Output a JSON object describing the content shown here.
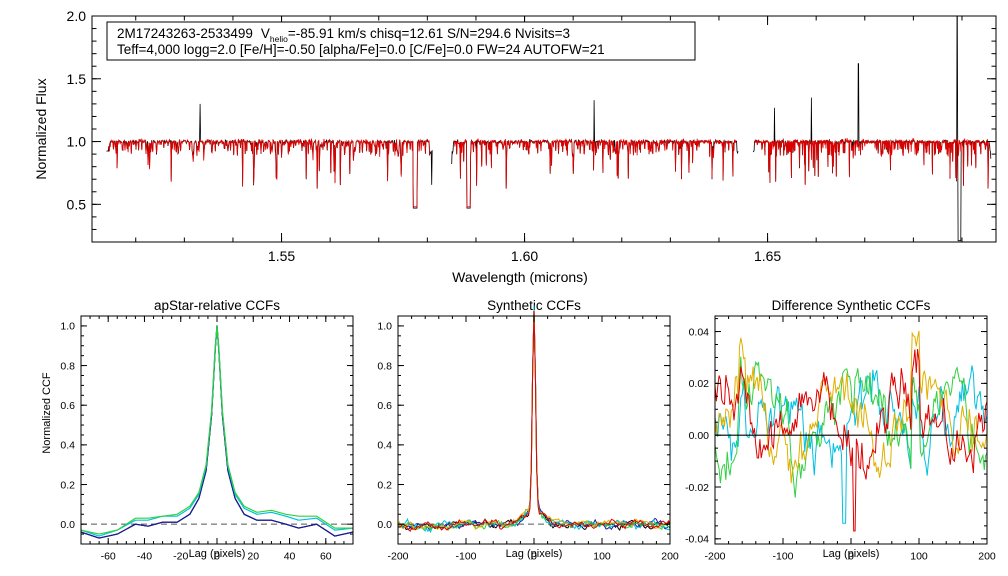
{
  "top": {
    "title_line1": {
      "star": "2M17243263-2533499",
      "v": "V",
      "v_sub": "helio",
      "v_rest": "=-85.91 km/s  chisq=12.61  S/N=294.6  Nvisits=3"
    },
    "title_line2": "Teff=4,000 logg=2.0 [Fe/H]=-0.50 [alpha/Fe]=0.0 [C/Fe]=0.0 FW=24 AUTOFW=21",
    "xlabel": "Wavelength (microns)",
    "ylabel": "Normalized Flux",
    "xlim": [
      1.511,
      1.697
    ],
    "ylim": [
      0.2,
      2.0
    ],
    "xticks": [
      1.55,
      1.6,
      1.65
    ],
    "xtick_labels": [
      "1.55",
      "1.60",
      "1.65"
    ],
    "yticks": [
      0.5,
      1.0,
      1.5,
      2.0
    ],
    "ytick_labels": [
      "0.5",
      "1.0",
      "1.5",
      "2.0"
    ],
    "chips": [
      [
        1.514,
        1.581
      ],
      [
        1.585,
        1.644
      ],
      [
        1.647,
        1.696
      ]
    ],
    "colors": {
      "observed": "#000000",
      "model": "#e00000"
    }
  },
  "chart_data": [
    {
      "type": "line",
      "title": "apStar-relative CCFs",
      "xlabel": "Lag (pixels)",
      "ylabel": "Normalized CCF",
      "xlim": [
        -75,
        75
      ],
      "ylim": [
        -0.1,
        1.05
      ],
      "xticks": [
        -60,
        -40,
        -20,
        0,
        20,
        40,
        60
      ],
      "xtick_labels": [
        "-60",
        "-40",
        "-20",
        "0",
        "20",
        "40",
        "60"
      ],
      "yticks": [
        0.0,
        0.2,
        0.4,
        0.6,
        0.8,
        1.0
      ],
      "ytick_labels": [
        "0.0",
        "0.2",
        "0.4",
        "0.6",
        "0.8",
        "1.0"
      ],
      "series": [
        {
          "name": "ccf-black",
          "color": "#000000",
          "x": [
            -75,
            -65,
            -55,
            -45,
            -38,
            -30,
            -22,
            -15,
            -10,
            -6,
            -3,
            -1,
            0,
            1,
            3,
            6,
            10,
            15,
            22,
            30,
            38,
            45,
            55,
            65,
            75
          ],
          "values": [
            -0.04,
            -0.07,
            -0.05,
            0.0,
            -0.01,
            0.01,
            0.01,
            0.05,
            0.13,
            0.27,
            0.55,
            0.88,
            1.0,
            0.88,
            0.55,
            0.27,
            0.13,
            0.05,
            0.02,
            0.02,
            0.0,
            -0.02,
            0.0,
            -0.06,
            -0.04
          ]
        },
        {
          "name": "ccf-navy",
          "color": "#1a1a9e",
          "x": [
            -75,
            -65,
            -55,
            -45,
            -38,
            -30,
            -22,
            -15,
            -10,
            -6,
            -3,
            -1,
            0,
            1,
            3,
            6,
            10,
            15,
            22,
            30,
            38,
            45,
            55,
            65,
            75
          ],
          "values": [
            -0.04,
            -0.07,
            -0.05,
            0.0,
            -0.01,
            0.01,
            0.01,
            0.05,
            0.13,
            0.27,
            0.55,
            0.88,
            1.0,
            0.88,
            0.55,
            0.27,
            0.13,
            0.05,
            0.02,
            0.02,
            0.0,
            -0.02,
            0.0,
            -0.06,
            -0.04
          ]
        },
        {
          "name": "ccf-cyan",
          "color": "#00c0e0",
          "x": [
            -75,
            -65,
            -55,
            -45,
            -38,
            -30,
            -22,
            -15,
            -10,
            -6,
            -3,
            -1,
            0,
            1,
            3,
            6,
            10,
            15,
            22,
            30,
            38,
            45,
            55,
            65,
            75
          ],
          "values": [
            -0.03,
            -0.06,
            -0.03,
            0.02,
            0.02,
            0.04,
            0.04,
            0.08,
            0.15,
            0.29,
            0.57,
            0.89,
            1.0,
            0.89,
            0.57,
            0.29,
            0.15,
            0.08,
            0.05,
            0.06,
            0.04,
            0.02,
            0.03,
            -0.03,
            -0.02
          ]
        },
        {
          "name": "ccf-green",
          "color": "#30d040",
          "x": [
            -75,
            -65,
            -55,
            -45,
            -38,
            -30,
            -22,
            -15,
            -10,
            -6,
            -3,
            -1,
            0,
            1,
            3,
            6,
            10,
            15,
            22,
            30,
            38,
            45,
            55,
            65,
            75
          ],
          "values": [
            -0.03,
            -0.05,
            -0.03,
            0.03,
            0.03,
            0.04,
            0.05,
            0.09,
            0.16,
            0.3,
            0.57,
            0.89,
            1.0,
            0.89,
            0.57,
            0.3,
            0.16,
            0.09,
            0.06,
            0.07,
            0.05,
            0.04,
            0.04,
            -0.02,
            -0.02
          ]
        }
      ],
      "reference_line": {
        "y": 0.0,
        "style": "dashed"
      }
    },
    {
      "type": "line",
      "title": "Synthetic CCFs",
      "xlabel": "Lag (pixels)",
      "ylabel": "",
      "xlim": [
        -200,
        200
      ],
      "ylim": [
        -0.1,
        1.05
      ],
      "xticks": [
        -200,
        -100,
        0,
        100,
        200
      ],
      "xtick_labels": [
        "-200",
        "-100",
        "0",
        "100",
        "200"
      ],
      "yticks": [
        0.0,
        0.2,
        0.4,
        0.6,
        0.8,
        1.0
      ],
      "ytick_labels": [
        "0.0",
        "0.2",
        "0.4",
        "0.6",
        "0.8",
        "1.0"
      ],
      "series_colors": [
        "#000000",
        "#1a1a9e",
        "#00c0e0",
        "#30d040",
        "#e0b000",
        "#e00000"
      ],
      "peak": 1.0,
      "reference_line": {
        "y": 0.0,
        "style": "dashed"
      }
    },
    {
      "type": "line",
      "title": "Difference Synthetic CCFs",
      "xlabel": "Lag (pixels)",
      "ylabel": "",
      "xlim": [
        -200,
        200
      ],
      "ylim": [
        -0.042,
        0.046
      ],
      "xticks": [
        -200,
        -100,
        0,
        100,
        200
      ],
      "xtick_labels": [
        "-200",
        "-100",
        "0",
        "100",
        "200"
      ],
      "yticks": [
        -0.04,
        -0.02,
        0.0,
        0.02,
        0.04
      ],
      "ytick_labels": [
        "-0.04",
        "-0.02",
        "0.00",
        "0.02",
        "0.04"
      ],
      "series_colors": [
        "#00c0e0",
        "#30d040",
        "#e0b000",
        "#e00000"
      ],
      "reference_line": {
        "y": 0.0,
        "style": "solid"
      }
    }
  ]
}
